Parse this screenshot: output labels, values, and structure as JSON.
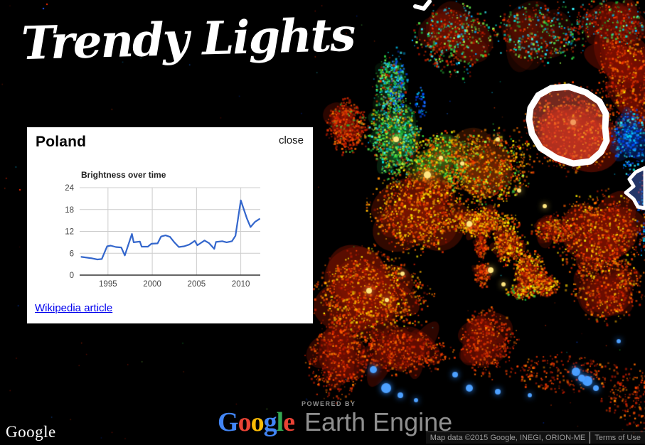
{
  "app": {
    "title": "Trendy Lights"
  },
  "info_panel": {
    "title": "Poland",
    "close_label": "close",
    "wikipedia_label": "Wikipedia article"
  },
  "chart_data": {
    "type": "line",
    "title": "Brightness over time",
    "xlabel": "",
    "ylabel": "",
    "xlim": [
      1991.8,
      2012.2
    ],
    "ylim": [
      0,
      24
    ],
    "x_ticks": [
      1995,
      2000,
      2005,
      2010
    ],
    "y_ticks": [
      0,
      6,
      12,
      18,
      24
    ],
    "grid": true,
    "legend": "none",
    "series": [
      {
        "name": "Brightness",
        "color": "#3366cc",
        "points": [
          [
            1992.0,
            5.0
          ],
          [
            1992.6,
            4.8
          ],
          [
            1993.2,
            4.6
          ],
          [
            1993.8,
            4.3
          ],
          [
            1994.3,
            4.4
          ],
          [
            1994.9,
            7.9
          ],
          [
            1995.3,
            8.1
          ],
          [
            1995.9,
            7.7
          ],
          [
            1996.5,
            7.6
          ],
          [
            1996.9,
            5.4
          ],
          [
            1997.7,
            11.3
          ],
          [
            1997.9,
            9.0
          ],
          [
            1998.6,
            9.2
          ],
          [
            1998.8,
            7.8
          ],
          [
            1999.5,
            7.8
          ],
          [
            1999.9,
            8.6
          ],
          [
            2000.6,
            8.7
          ],
          [
            2001.0,
            10.6
          ],
          [
            2001.5,
            10.9
          ],
          [
            2002.0,
            10.5
          ],
          [
            2002.5,
            9.0
          ],
          [
            2003.0,
            7.7
          ],
          [
            2003.6,
            7.9
          ],
          [
            2004.2,
            8.4
          ],
          [
            2004.8,
            9.4
          ],
          [
            2005.1,
            8.2
          ],
          [
            2005.9,
            9.5
          ],
          [
            2006.4,
            8.8
          ],
          [
            2007.0,
            7.2
          ],
          [
            2007.2,
            9.1
          ],
          [
            2007.9,
            9.3
          ],
          [
            2008.4,
            9.0
          ],
          [
            2009.0,
            9.3
          ],
          [
            2009.4,
            10.8
          ],
          [
            2010.0,
            20.5
          ],
          [
            2010.7,
            15.5
          ],
          [
            2011.1,
            13.2
          ],
          [
            2011.6,
            14.6
          ],
          [
            2012.1,
            15.4
          ]
        ]
      }
    ]
  },
  "branding": {
    "google_watermark": "Google",
    "powered_by_label": "POWERED BY",
    "logo_letters": [
      {
        "ch": "G",
        "color": "#4285F4"
      },
      {
        "ch": "o",
        "color": "#EA4335"
      },
      {
        "ch": "o",
        "color": "#FBBC05"
      },
      {
        "ch": "g",
        "color": "#4285F4"
      },
      {
        "ch": "l",
        "color": "#34A853"
      },
      {
        "ch": "e",
        "color": "#EA4335"
      }
    ],
    "product_name": "Earth Engine"
  },
  "attribution": {
    "map_data": "Map data ©2015 Google, INEGI, ORION-ME",
    "terms": "Terms of Use"
  },
  "map": {
    "background_color": "#000000",
    "highlight_outline_color": "#ffffff",
    "highlight_fill_color": "#e8503c",
    "secondary_highlight_fill_color": "#5078e6",
    "line_color": "#3366cc"
  }
}
